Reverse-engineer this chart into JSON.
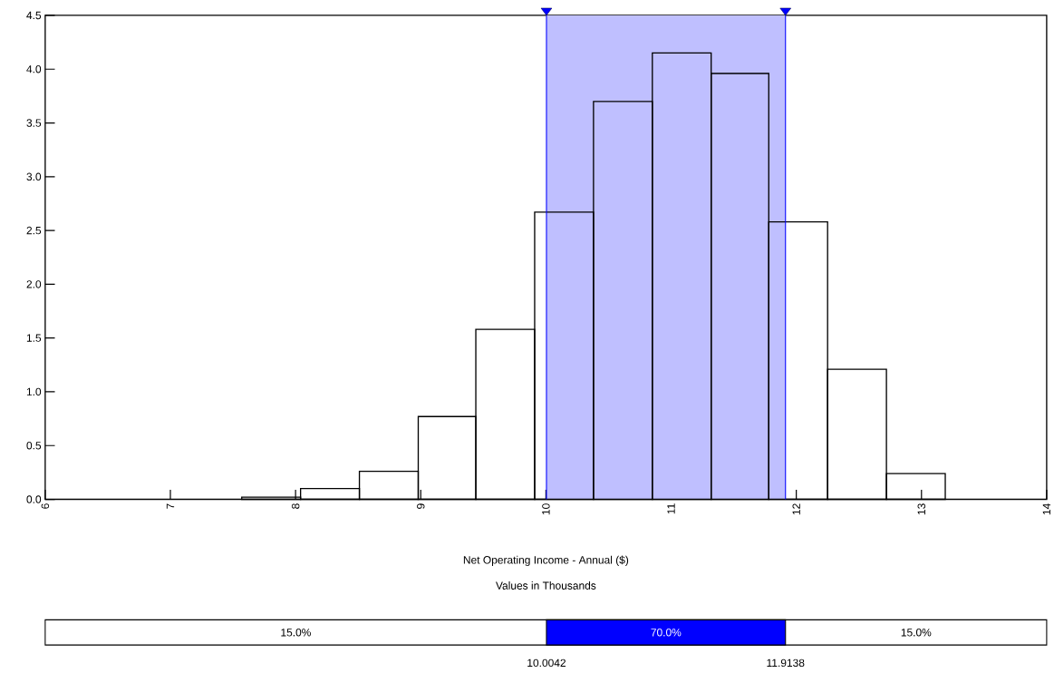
{
  "chart_data": {
    "type": "histogram",
    "xlabel": "Net Operating Income - Annual ($)",
    "bins": [
      7.57,
      8.04,
      8.51,
      8.98,
      9.44,
      9.91,
      10.38,
      10.85,
      11.32,
      11.78,
      12.25,
      12.72,
      13.19
    ],
    "values": [
      0.02,
      0.1,
      0.26,
      0.77,
      1.58,
      2.67,
      3.7,
      4.15,
      3.96,
      2.58,
      1.21,
      0.24
    ],
    "color": "#000000",
    "xlim": [
      6,
      14
    ],
    "xticks": [
      6,
      7,
      8,
      9,
      10,
      11,
      12,
      13,
      14
    ],
    "ylim": [
      0,
      4.5
    ],
    "yticks": [
      {
        "value": 0,
        "label": "0.0"
      },
      {
        "value": 0.5,
        "label": "0.5"
      },
      {
        "value": 1,
        "label": "1.0"
      },
      {
        "value": 1.5,
        "label": "1.5"
      },
      {
        "value": 2,
        "label": "2.0"
      },
      {
        "value": 2.5,
        "label": "2.5"
      },
      {
        "value": 3,
        "label": "3.0"
      },
      {
        "value": 3.5,
        "label": "3.5"
      },
      {
        "value": 4,
        "label": "4.0"
      },
      {
        "value": 4.5,
        "label": "4.5"
      }
    ],
    "bands": [
      {
        "axis": "x",
        "from": 10.0042,
        "to": 11.9138,
        "color": "#bfbfff"
      }
    ],
    "ref_lines": [
      {
        "axis": "x",
        "value": 10.0042,
        "color": "#0000ff"
      },
      {
        "axis": "x",
        "value": 11.9138,
        "color": "#0000ff"
      }
    ],
    "annotations": [
      "15.0%",
      "70.0%",
      "15.0%",
      "10.0042",
      "11.9138",
      "Values in Thousands"
    ],
    "grid": false
  }
}
